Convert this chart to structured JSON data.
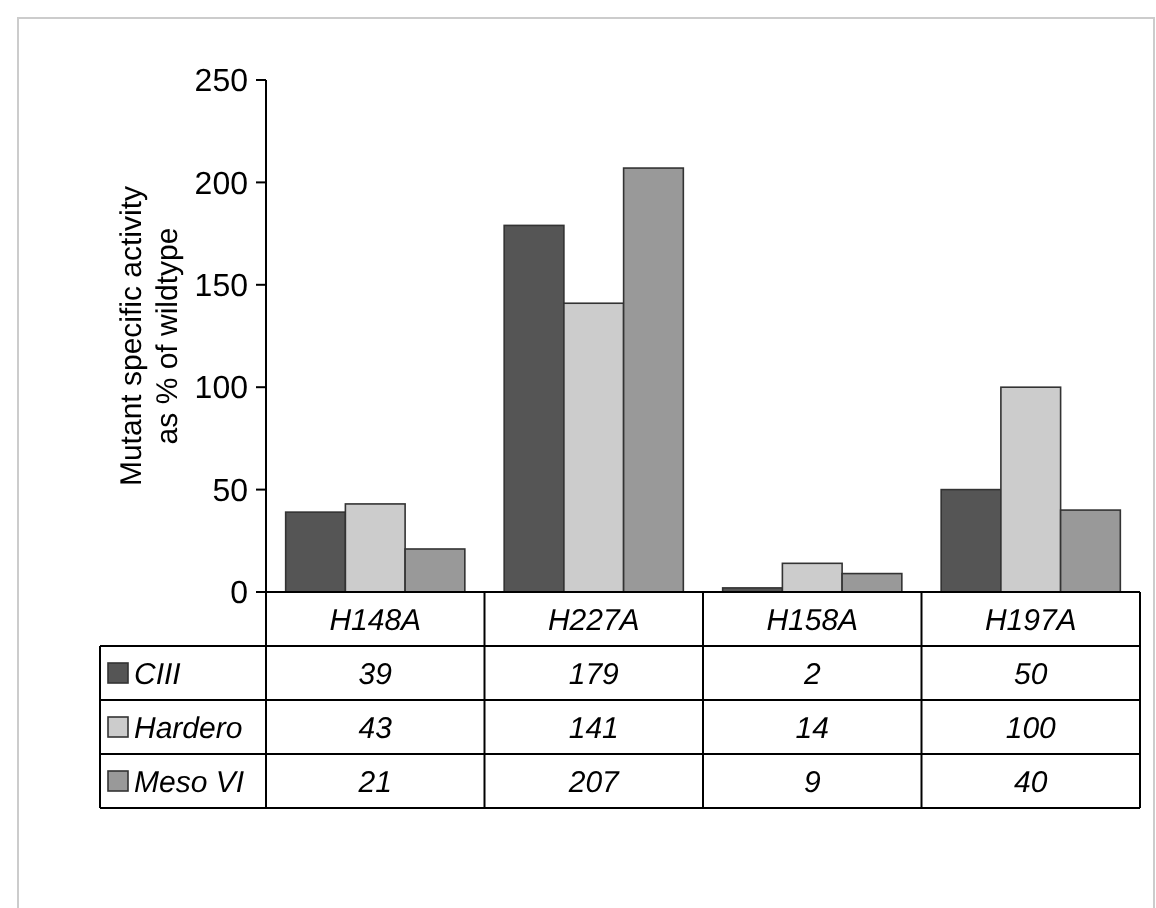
{
  "chart_data": {
    "type": "bar",
    "ylabel": "Mutant specific activity as % of wildtype",
    "categories": [
      "H148A",
      "H227A",
      "H158A",
      "H197A"
    ],
    "series": [
      {
        "name": "CIII",
        "color": "#555555",
        "values": [
          39,
          179,
          2,
          50
        ]
      },
      {
        "name": "Hardero",
        "color": "#cccccc",
        "values": [
          43,
          141,
          14,
          100
        ]
      },
      {
        "name": "Meso VI",
        "color": "#999999",
        "values": [
          21,
          207,
          9,
          40
        ]
      }
    ],
    "ylim": [
      0,
      250
    ],
    "yticks": [
      0,
      50,
      100,
      150,
      200,
      250
    ],
    "data_labels": true,
    "legend": "bottom",
    "grid": false
  }
}
